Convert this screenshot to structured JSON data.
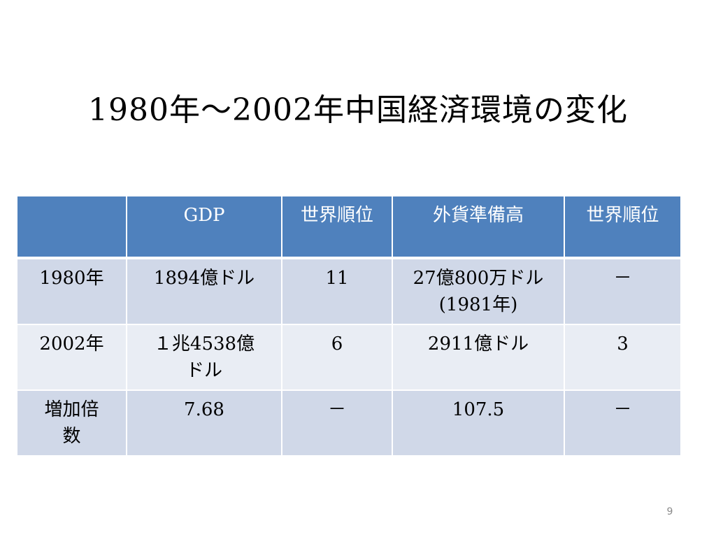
{
  "title": "1980年～2002年中国経済環境の変化",
  "table": {
    "headers": [
      "",
      "GDP",
      "世界順位",
      "外貨準備高",
      "世界順位"
    ],
    "rows": [
      [
        "1980年",
        "1894億ドル",
        "11",
        "27億800万ドル\n(1981年)",
        "－"
      ],
      [
        "2002年",
        "１兆4538億\nドル",
        "6",
        "2911億ドル",
        "3"
      ],
      [
        "増加倍\n数",
        "7.68",
        "－",
        "107.5",
        "－"
      ]
    ]
  },
  "page_number": "9",
  "colors": {
    "header_bg": "#4f81bd",
    "row_odd_bg": "#d0d8e8",
    "row_even_bg": "#e9edf4"
  }
}
